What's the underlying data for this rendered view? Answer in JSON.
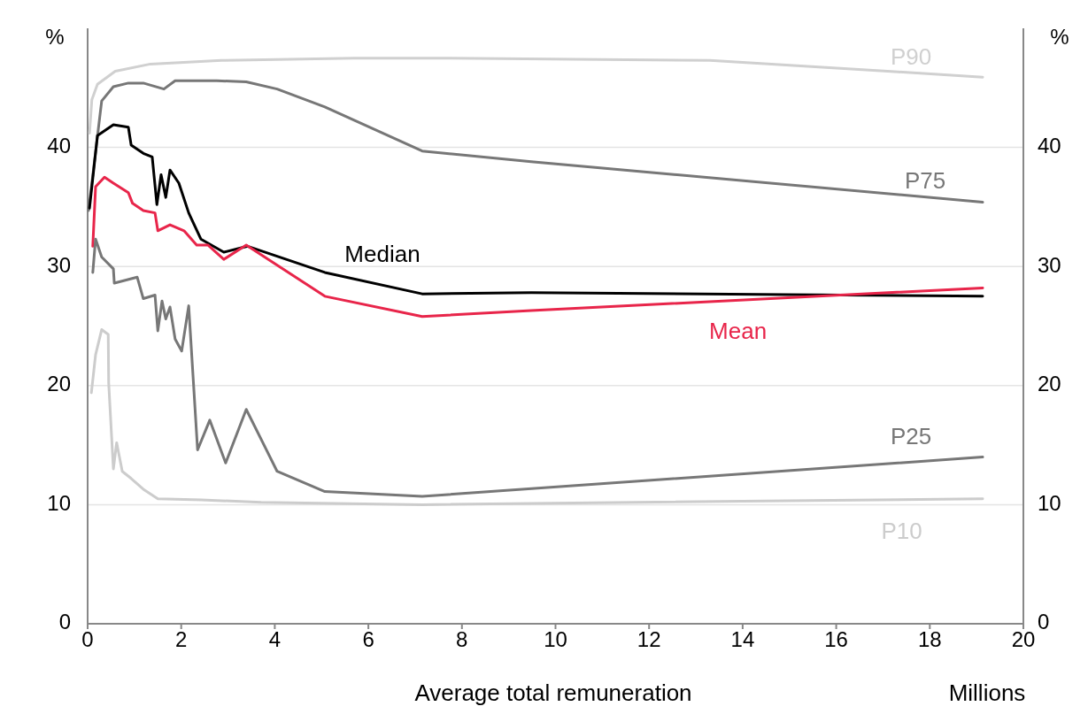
{
  "chart_data": {
    "type": "line",
    "ylabel": "%",
    "y2label": "%",
    "xlabel": "Average total remuneration",
    "annotations": [
      "Millions"
    ],
    "xlim": [
      0,
      20
    ],
    "xticks": [
      0,
      2,
      4,
      6,
      8,
      10,
      12,
      14,
      16,
      18,
      20
    ],
    "ylim": [
      0,
      50
    ],
    "yticks": [
      0,
      10,
      20,
      30,
      40
    ],
    "y2lim": [
      0,
      50
    ],
    "y2ticks": [
      0,
      10,
      20,
      30,
      40
    ],
    "grid": "y",
    "marker": "none",
    "line_style": "solid",
    "series": [
      {
        "name": "P90",
        "color": "#d0d0d0",
        "x": [
          0.04,
          0.09,
          0.21,
          0.59,
          1.34,
          2.86,
          5.7,
          7.6,
          13.3,
          17.1,
          19.13
        ],
        "values": [
          41.2,
          44,
          45.3,
          46.4,
          47,
          47.3,
          47.5,
          47.5,
          47.3,
          46.4,
          45.9
        ]
      },
      {
        "name": "P75",
        "color": "#777777",
        "x": [
          0.02,
          0.3,
          0.55,
          0.87,
          1.19,
          1.63,
          1.87,
          2.76,
          3.39,
          4.05,
          5.07,
          7.15,
          9.48,
          19.13
        ],
        "values": [
          34.7,
          43.9,
          45.1,
          45.4,
          45.4,
          44.9,
          45.6,
          45.6,
          45.5,
          44.9,
          43.4,
          39.7,
          38.8,
          35.4
        ]
      },
      {
        "name": "Median",
        "color": "#000000",
        "x": [
          0.04,
          0.21,
          0.55,
          0.87,
          0.93,
          1.19,
          1.38,
          1.48,
          1.57,
          1.67,
          1.76,
          1.95,
          2.16,
          2.42,
          2.91,
          3.42,
          5.07,
          7.15,
          9.48,
          19.13
        ],
        "values": [
          34.9,
          41,
          41.9,
          41.7,
          40.2,
          39.5,
          39.2,
          35.2,
          37.7,
          35.8,
          38.1,
          37,
          34.5,
          32.3,
          31.2,
          31.7,
          29.5,
          27.7,
          27.8,
          27.5
        ]
      },
      {
        "name": "Mean",
        "color": "#e8254a",
        "x": [
          0.11,
          0.17,
          0.36,
          0.55,
          0.87,
          0.96,
          1.19,
          1.44,
          1.5,
          1.76,
          2.06,
          2.33,
          2.57,
          2.91,
          3.39,
          5.07,
          7.15,
          9.48,
          19.13
        ],
        "values": [
          31.7,
          36.7,
          37.5,
          37,
          36.2,
          35.3,
          34.7,
          34.5,
          33,
          33.5,
          33,
          31.8,
          31.8,
          30.6,
          31.8,
          27.5,
          25.8,
          26.3,
          28.2
        ]
      },
      {
        "name": "P25",
        "color": "#777777",
        "x": [
          0.11,
          0.17,
          0.3,
          0.55,
          0.57,
          1.06,
          1.19,
          1.44,
          1.5,
          1.59,
          1.67,
          1.76,
          1.87,
          2.01,
          2.16,
          2.35,
          2.61,
          2.95,
          3.39,
          4.05,
          5.07,
          7.15,
          19.13
        ],
        "values": [
          29.5,
          32.3,
          30.8,
          29.8,
          28.6,
          29.1,
          27.3,
          27.6,
          24.6,
          27.1,
          25.6,
          26.6,
          23.9,
          22.9,
          26.7,
          14.6,
          17.1,
          13.5,
          18,
          12.8,
          11.1,
          10.7,
          14
        ]
      },
      {
        "name": "P10",
        "color": "#cccccc",
        "x": [
          0.08,
          0.17,
          0.3,
          0.44,
          0.45,
          0.55,
          0.62,
          0.74,
          0.93,
          1.19,
          1.5,
          2.44,
          3.71,
          7.15,
          19.13
        ],
        "values": [
          19.4,
          22.6,
          24.7,
          24.3,
          20.2,
          13,
          15.2,
          12.8,
          12.2,
          11.3,
          10.5,
          10.4,
          10.2,
          10,
          10.5
        ]
      }
    ]
  }
}
